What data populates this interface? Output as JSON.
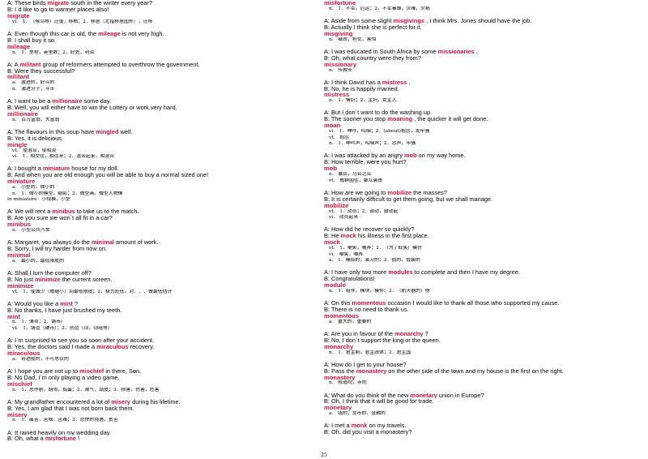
{
  "page_number": "25",
  "columns": [
    {
      "entries": [
        {
          "lines": [
            {
              "speaker": "A:",
              "before": " These birds ",
              "word": "migrate",
              "after": " south in the winter every year?"
            },
            {
              "speaker": "B:",
              "before": " I`d like to go to warmer places also!",
              "word": "",
              "after": ""
            }
          ],
          "headword": "migrate",
          "defs": [
            {
              "pos": "vi.",
              "text": "1．（候鸟等）迁徙，移栖；2．移居（尤指移居国外），迁移"
            }
          ]
        },
        {
          "lines": [
            {
              "speaker": "A:",
              "before": " Even though this car is old, the ",
              "word": "mileage",
              "after": " is not very high."
            },
            {
              "speaker": "B:",
              "before": " I shall buy it so.",
              "word": "",
              "after": ""
            }
          ],
          "headword": "mileage",
          "defs": [
            {
              "pos": "n.",
              "text": "1．里程，英里数；2．好处，利润"
            }
          ]
        },
        {
          "lines": [
            {
              "speaker": "A:",
              "before": " A ",
              "word": "militant",
              "after": "    group of reformers attempted to overthrow the government."
            },
            {
              "speaker": "B:",
              "before": " Were they successful?",
              "word": "",
              "after": ""
            }
          ],
          "headword": "militant",
          "defs": [
            {
              "pos": "a.",
              "text": "激进的，好斗的"
            },
            {
              "pos": "n.",
              "text": "激进分子，斗士"
            }
          ]
        },
        {
          "lines": [
            {
              "speaker": "A:",
              "before": " I want to be a ",
              "word": "millionaire",
              "after": "    some day."
            },
            {
              "speaker": "B:",
              "before": " Well, you will either have to win the Lottery or work very hard.",
              "word": "",
              "after": ""
            }
          ],
          "headword": "millionaire",
          "defs": [
            {
              "pos": "n.",
              "text": "百万富翁，大富翁"
            }
          ]
        },
        {
          "lines": [
            {
              "speaker": "A:",
              "before": " The flavours in this soup have ",
              "word": "mingled",
              "after": "    well."
            },
            {
              "speaker": "B:",
              "before": " Yes, it is delicious.",
              "word": "",
              "after": ""
            }
          ],
          "headword": "mingle",
          "defs": [
            {
              "pos": "vt.",
              "text": "使混合，使相混"
            },
            {
              "pos": "vi.",
              "text": "1．相交往，相往来；2．混合起来，相混合"
            }
          ]
        },
        {
          "lines": [
            {
              "speaker": "A:",
              "before": " I bought a ",
              "word": "miniature",
              "after": "    house for my doll."
            },
            {
              "speaker": "B:",
              "before": " And when you are old enough you will be able to buy a normal sized one!",
              "word": "",
              "after": ""
            }
          ],
          "headword": "miniature",
          "defs": [
            {
              "pos": "a.",
              "text": "小型的，微小的"
            },
            {
              "pos": "n.",
              "text": "1．微小的模型，缩影；2．微型画，微型人物像"
            },
            {
              "pos": "in miniature",
              "text": "小规模，小型"
            }
          ]
        },
        {
          "lines": [
            {
              "speaker": "A:",
              "before": " We will rent a ",
              "word": "minibus",
              "after": "    to take us to the match."
            },
            {
              "speaker": "B:",
              "before": " Are you sure we won`t all fit in a car?",
              "word": "",
              "after": ""
            }
          ],
          "headword": "minibus",
          "defs": [
            {
              "pos": "n.",
              "text": "小型公共汽车"
            }
          ]
        },
        {
          "lines": [
            {
              "speaker": "A:",
              "before": " Margaret, you always do the ",
              "word": "minimal",
              "after": "    amount of work."
            },
            {
              "speaker": "B:",
              "before": " Sorry, I will try harder from now on.",
              "word": "",
              "after": ""
            }
          ],
          "headword": "minimal",
          "defs": [
            {
              "pos": "a.",
              "text": "最小的，最低限度的"
            }
          ]
        },
        {
          "lines": [
            {
              "speaker": "A:",
              "before": " Shall I turn the computer off?",
              "word": "",
              "after": ""
            },
            {
              "speaker": "B:",
              "before": " No just ",
              "word": "minimize",
              "after": "    the current screen."
            }
          ],
          "headword": "minimize",
          "defs": [
            {
              "pos": "vt.",
              "text": "1．使减少（或缩小）到最低限度；2．极力贬低，对．．．做最低估计"
            }
          ]
        },
        {
          "lines": [
            {
              "speaker": "A:",
              "before": " Would you like a ",
              "word": "mint",
              "after": "    ?"
            },
            {
              "speaker": "B:",
              "before": " No thanks, I have just brushed my teeth.",
              "word": "",
              "after": ""
            }
          ],
          "headword": "mint",
          "defs": [
            {
              "pos": "n.",
              "text": "1．薄荷；2．铸币厂"
            },
            {
              "pos": "vt.",
              "text": "1．铸造（硬币）；2．创造（词，词组等）"
            }
          ]
        },
        {
          "lines": [
            {
              "speaker": "A:",
              "before": " I`m surprised to see you so soon after your accident.",
              "word": "",
              "after": ""
            },
            {
              "speaker": "B:",
              "before": " Yes, the doctors said I made a ",
              "word": "miraculous",
              "after": "    recovery."
            }
          ],
          "headword": "miraculous",
          "defs": [
            {
              "pos": "a.",
              "text": "奇迹般的，不可思议的"
            }
          ]
        },
        {
          "lines": [
            {
              "speaker": "A:",
              "before": " I hope you are not up to ",
              "word": "mischief",
              "after": "    in there, Son."
            },
            {
              "speaker": "B:",
              "before": " No Dad, I`m only playing a video game.",
              "word": "",
              "after": ""
            }
          ],
          "headword": "mischief",
          "defs": [
            {
              "pos": "n.",
              "text": "1．恶作剧，胡闹，捣蛋；2．淘气，顽皮；3．损害，伤害，危害"
            }
          ]
        },
        {
          "lines": [
            {
              "speaker": "A:",
              "before": " My grandfather encountered a lot of ",
              "word": "misery",
              "after": "    during his lifetime."
            },
            {
              "speaker": "B:",
              "before": " Yes, I am glad that I was not born back them.",
              "word": "",
              "after": ""
            }
          ],
          "headword": "misery",
          "defs": [
            {
              "pos": "n.",
              "text": "1．痛苦，苦恼，苦难；2．悲惨的境遇，贫苦"
            }
          ]
        },
        {
          "lines": [
            {
              "speaker": "A:",
              "before": " It rained heavily on my wedding day.",
              "word": "",
              "after": ""
            },
            {
              "speaker": "B:",
              "before": " Oh, what a ",
              "word": "misfortune",
              "after": "    !"
            }
          ],
          "headword": "",
          "defs": []
        }
      ]
    },
    {
      "entries": [
        {
          "lines": [],
          "headword": "misfortune",
          "defs": [
            {
              "pos": "n.",
              "text": "1．不幸，厄运；2．不幸事故，灾难，灾祸"
            }
          ]
        },
        {
          "lines": [
            {
              "speaker": "A:",
              "before": " Aside from some slight ",
              "word": "misgivings",
              "after": "    , I think Mrs. Jones should have the job."
            },
            {
              "speaker": "B:",
              "before": " Actually I think she is perfect for it.",
              "word": "",
              "after": ""
            }
          ],
          "headword": "misgiving",
          "defs": [
            {
              "pos": "n.",
              "text": "疑虑，担忧，害怕"
            }
          ]
        },
        {
          "lines": [
            {
              "speaker": "A:",
              "before": " I was educated in South Africa by some ",
              "word": "missionaries",
              "after": "    ."
            },
            {
              "speaker": "B:",
              "before": " Oh, what country were they from?",
              "word": "",
              "after": ""
            }
          ],
          "headword": "missionary",
          "defs": [
            {
              "pos": "n.",
              "text": "传教士"
            }
          ]
        },
        {
          "lines": [
            {
              "speaker": "A:",
              "before": " I think David has a ",
              "word": "mistress",
              "after": "    ."
            },
            {
              "speaker": "B:",
              "before": " No, he is happily married.",
              "word": "",
              "after": ""
            }
          ],
          "headword": "mistress",
          "defs": [
            {
              "pos": "n.",
              "text": "1．情妇；2．主妇，女主人"
            }
          ]
        },
        {
          "lines": [
            {
              "speaker": "A:",
              "before": " But I don`t want to do the washing up.",
              "word": "",
              "after": ""
            },
            {
              "speaker": "B:",
              "before": " The sooner you stop ",
              "word": "moaning",
              "after": "    , the quicker it will get done."
            }
          ],
          "headword": "moan",
          "defs": [
            {
              "pos": "vi.",
              "text": "1．呻吟，呜咽；2．(about)抱怨，发牢骚"
            },
            {
              "pos": "vt.",
              "text": "抱怨"
            },
            {
              "pos": "n.",
              "text": "1．呻吟声，呜咽声；2．怨声，牢骚"
            }
          ]
        },
        {
          "lines": [
            {
              "speaker": "A:",
              "before": " I was attacked by an angry ",
              "word": "mob",
              "after": "    on my way home."
            },
            {
              "speaker": "B:",
              "before": " How terrible, were you hurt?",
              "word": "",
              "after": ""
            }
          ],
          "headword": "mob",
          "defs": [
            {
              "pos": "n.",
              "text": "暴民，乌合之众"
            },
            {
              "pos": "vt.",
              "text": "成群围住，聚众袭击"
            }
          ]
        },
        {
          "lines": [
            {
              "speaker": "A:",
              "before": " How are we going to ",
              "word": "mobilize",
              "after": "    the masses?"
            },
            {
              "speaker": "B:",
              "before": " It is certainly difficult to get them going, but we shall manage.",
              "word": "",
              "after": ""
            }
          ],
          "headword": "mobilize",
          "defs": [
            {
              "pos": "vt.",
              "text": "1．动员；2．调动，鼓动起"
            },
            {
              "pos": "vi.",
              "text": "动员起来"
            }
          ]
        },
        {
          "lines": [
            {
              "speaker": "A:",
              "before": " How did he recover so quickly?",
              "word": "",
              "after": ""
            },
            {
              "speaker": "B:",
              "before": " He ",
              "word": "mock",
              "after": "    his illness in the first place."
            }
          ],
          "headword": "mock",
          "defs": [
            {
              "pos": "vt.",
              "text": "1．嘲笑，嘲弄；2．（为了取笑）模仿"
            },
            {
              "pos": "vi.",
              "text": "嘲笑，嘲弄"
            },
            {
              "pos": "a.",
              "text": "1．模拟的，演习的；2．假的，假装的"
            }
          ]
        },
        {
          "lines": [
            {
              "speaker": "A:",
              "before": " I have only two more ",
              "word": "modules",
              "after": "    to complete and then I have my degree."
            },
            {
              "speaker": "B:",
              "before": " Congratulations!",
              "word": "",
              "after": ""
            }
          ],
          "headword": "module",
          "defs": [
            {
              "pos": "n.",
              "text": "1．组件，模块，模件；2．（航天器的）舱"
            }
          ]
        },
        {
          "lines": [
            {
              "speaker": "A:",
              "before": " On this ",
              "word": "momentous",
              "after": "    occasion I would like to thank all those who supported my cause."
            },
            {
              "speaker": "B:",
              "before": " There is no need to thank us.",
              "word": "",
              "after": ""
            }
          ],
          "headword": "momentous",
          "defs": [
            {
              "pos": "a.",
              "text": "重大的，重要的"
            }
          ]
        },
        {
          "lines": [
            {
              "speaker": "A:",
              "before": " Are you in favour of the ",
              "word": "monarchy",
              "after": "    ?"
            },
            {
              "speaker": "B:",
              "before": " No, I don`t support the king or the queen.",
              "word": "",
              "after": ""
            }
          ],
          "headword": "monarchy",
          "defs": [
            {
              "pos": "n.",
              "text": "1．君主制，君主政体；2．君主国"
            }
          ]
        },
        {
          "lines": [
            {
              "speaker": "A:",
              "before": " How do I get to your house?",
              "word": "",
              "after": ""
            },
            {
              "speaker": "B:",
              "before": " Pass the ",
              "word": "monastery",
              "after": "    on the other side of the town and my house is the first on the right."
            }
          ],
          "headword": "monastery",
          "defs": [
            {
              "pos": "n.",
              "text": "修道院，寺院"
            }
          ]
        },
        {
          "lines": [
            {
              "speaker": "A:",
              "before": " What do you think of the new ",
              "word": "monetary",
              "after": "    union in Europe?"
            },
            {
              "speaker": "B:",
              "before": " Oh, I think that it will be good for trade.",
              "word": "",
              "after": ""
            }
          ],
          "headword": "monetary",
          "defs": [
            {
              "pos": "a.",
              "text": "钱的，货币的，金融的"
            }
          ]
        },
        {
          "lines": [
            {
              "speaker": "A:",
              "before": " I met a ",
              "word": "monk",
              "after": "    on my travels."
            },
            {
              "speaker": "B:",
              "before": " Oh, did you visit a monastery?",
              "word": "",
              "after": ""
            }
          ],
          "headword": "",
          "defs": []
        }
      ]
    }
  ]
}
